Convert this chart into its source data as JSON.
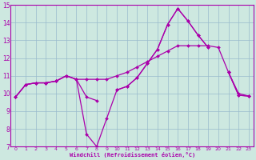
{
  "xlabel": "Windchill (Refroidissement éolien,°C)",
  "bg_color": "#cde8e0",
  "line_color": "#aa00aa",
  "grid_color": "#99bbcc",
  "xlim": [
    -0.5,
    23.5
  ],
  "ylim": [
    7,
    15
  ],
  "xticks": [
    0,
    1,
    2,
    3,
    4,
    5,
    6,
    7,
    8,
    9,
    10,
    11,
    12,
    13,
    14,
    15,
    16,
    17,
    18,
    19,
    20,
    21,
    22,
    23
  ],
  "yticks": [
    7,
    8,
    9,
    10,
    11,
    12,
    13,
    14,
    15
  ],
  "lines": [
    {
      "x": [
        0,
        1,
        2,
        3,
        4,
        5,
        6,
        7,
        8,
        9,
        10,
        11,
        12,
        13,
        14,
        15,
        16,
        17,
        18,
        19,
        20,
        21,
        22,
        23
      ],
      "y": [
        9.8,
        10.5,
        10.6,
        10.6,
        10.7,
        11.0,
        10.8,
        7.7,
        7.0,
        8.6,
        10.2,
        10.4,
        10.9,
        11.7,
        12.5,
        13.9,
        14.8,
        14.1,
        13.3,
        12.6,
        null,
        11.2,
        9.9,
        9.85
      ]
    },
    {
      "x": [
        0,
        1,
        2,
        3,
        4,
        5,
        6,
        7,
        8,
        9,
        10,
        11,
        12,
        13,
        14,
        15,
        16,
        17,
        18,
        19,
        20,
        21,
        22,
        23
      ],
      "y": [
        9.8,
        10.5,
        10.6,
        10.6,
        10.7,
        11.0,
        10.8,
        9.8,
        9.6,
        null,
        10.2,
        10.4,
        10.9,
        11.7,
        12.5,
        13.9,
        14.8,
        14.1,
        13.3,
        12.6,
        null,
        11.2,
        9.9,
        9.85
      ]
    },
    {
      "x": [
        0,
        1,
        2,
        3,
        4,
        5,
        6,
        7,
        8,
        9,
        10,
        11,
        12,
        13,
        14,
        15,
        16,
        17,
        18,
        19,
        20,
        21,
        22,
        23
      ],
      "y": [
        9.8,
        10.5,
        10.6,
        10.6,
        10.7,
        11.0,
        10.8,
        10.8,
        10.8,
        10.8,
        11.0,
        11.2,
        11.5,
        11.8,
        12.1,
        12.4,
        12.7,
        12.7,
        12.7,
        12.7,
        12.6,
        11.2,
        10.0,
        9.85
      ]
    }
  ]
}
